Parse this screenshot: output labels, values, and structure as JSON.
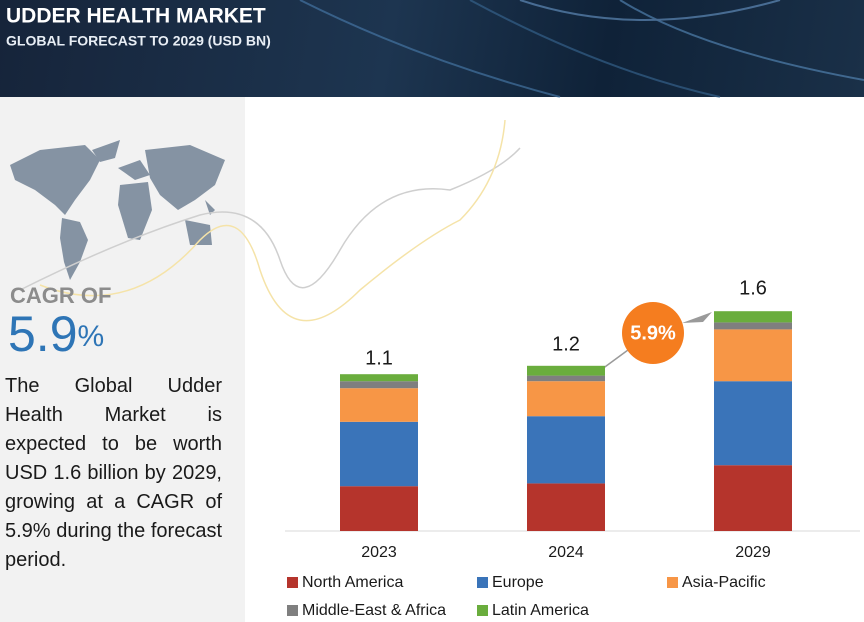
{
  "chart_data": {
    "type": "bar",
    "stacked": true,
    "title": "UDDER HEALTH MARKET",
    "subtitle": "GLOBAL FORECAST TO 2029 (USD BN)",
    "categories": [
      "2023",
      "2024",
      "2029"
    ],
    "series": [
      {
        "name": "North America",
        "color": "#b5342c",
        "values": [
          0.32,
          0.34,
          0.47
        ]
      },
      {
        "name": "Europe",
        "color": "#3a74b9",
        "values": [
          0.46,
          0.48,
          0.6
        ]
      },
      {
        "name": "Asia-Pacific",
        "color": "#f79646",
        "values": [
          0.24,
          0.25,
          0.37
        ]
      },
      {
        "name": "Middle-East & Africa",
        "color": "#7f7f7f",
        "values": [
          0.05,
          0.04,
          0.05
        ]
      },
      {
        "name": "Latin America",
        "color": "#6aad3d",
        "values": [
          0.05,
          0.07,
          0.08
        ]
      }
    ],
    "totals": [
      1.1,
      1.2,
      1.6
    ],
    "annotation": "5.9%"
  },
  "cagr": {
    "label": "CAGR OF",
    "value": "5.9",
    "unit": "%"
  },
  "description": "The Global Udder Health Market is expected to be worth USD 1.6 billion by 2029, growing at a CAGR of 5.9% during the forecast period."
}
